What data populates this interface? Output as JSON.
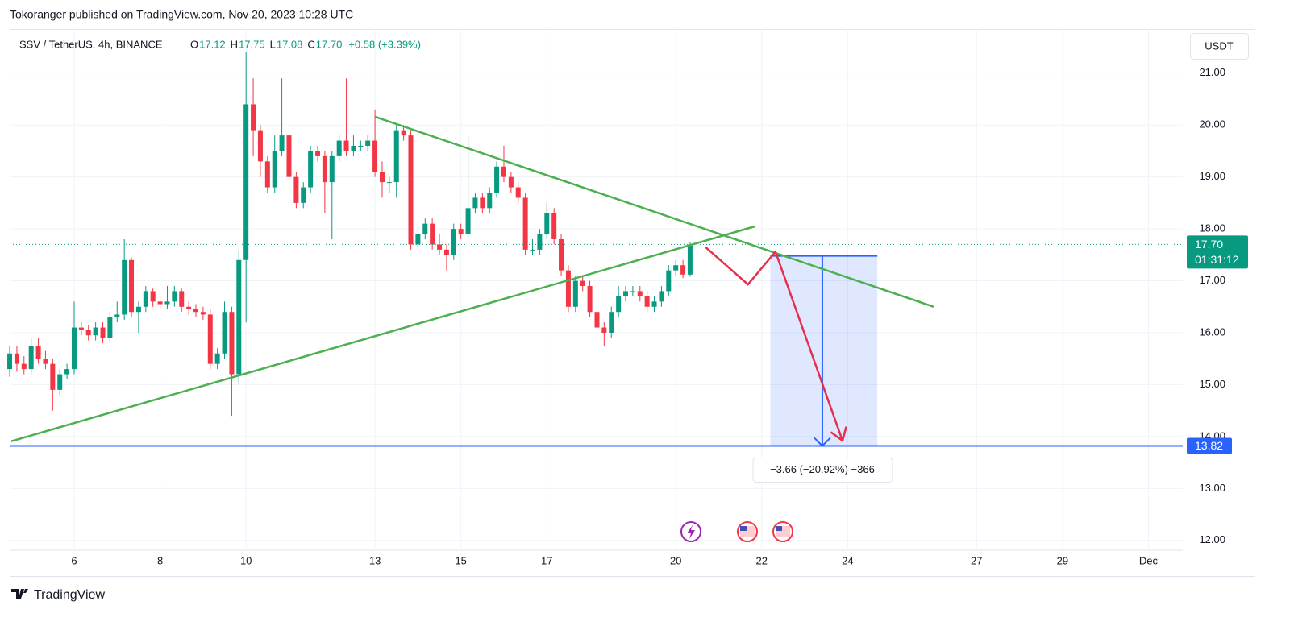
{
  "header": "Tokoranger published on TradingView.com, Nov 20, 2023 10:28 UTC",
  "footer": "TradingView",
  "currency_button": "USDT",
  "chart_data": {
    "type": "candlestick",
    "symbol": "SSV / TetherUS, 4h, BINANCE",
    "ohlc_legend": [
      {
        "label": "O",
        "value": "17.12"
      },
      {
        "label": "H",
        "value": "17.75"
      },
      {
        "label": "L",
        "value": "17.08"
      },
      {
        "label": "C",
        "value": "17.70"
      }
    ],
    "change": "+0.58 (+3.39%)",
    "up_color": "#089981",
    "down_color": "#f23645",
    "x": [
      4.5,
      4.667,
      4.833,
      5,
      5.167,
      5.333,
      5.5,
      5.667,
      5.833,
      6,
      6.167,
      6.333,
      6.5,
      6.667,
      6.833,
      7,
      7.167,
      7.333,
      7.5,
      7.667,
      7.833,
      8,
      8.167,
      8.333,
      8.5,
      8.667,
      8.833,
      9,
      9.167,
      9.333,
      9.5,
      9.667,
      9.833,
      10,
      10.167,
      10.333,
      10.5,
      10.667,
      10.833,
      11,
      11.167,
      11.333,
      11.5,
      11.667,
      11.833,
      12,
      12.167,
      12.333,
      12.5,
      12.667,
      12.833,
      13,
      13.167,
      13.333,
      13.5,
      13.667,
      13.833,
      14,
      14.167,
      14.333,
      14.5,
      14.667,
      14.833,
      15,
      15.167,
      15.333,
      15.5,
      15.667,
      15.833,
      16,
      16.167,
      16.333,
      16.5,
      16.667,
      16.833,
      17,
      17.167,
      17.333,
      17.5,
      17.667,
      17.833,
      18,
      18.167,
      18.333,
      18.5,
      18.667,
      18.833,
      19,
      19.167,
      19.333,
      19.5,
      19.667,
      19.833,
      20,
      20.167,
      20.333
    ],
    "open": [
      15.3,
      15.6,
      15.4,
      15.3,
      15.75,
      15.5,
      15.4,
      14.9,
      15.2,
      15.3,
      16.1,
      16.05,
      15.95,
      16.1,
      15.9,
      16.3,
      16.35,
      17.4,
      16.4,
      16.5,
      16.8,
      16.6,
      16.55,
      16.6,
      16.8,
      16.5,
      16.45,
      16.4,
      16.35,
      15.4,
      15.6,
      16.4,
      15.2,
      17.4,
      20.4,
      19.9,
      19.3,
      18.8,
      19.5,
      19.8,
      19.0,
      18.5,
      18.8,
      19.5,
      19.4,
      18.9,
      19.4,
      19.7,
      19.5,
      19.6,
      19.6,
      19.7,
      19.1,
      18.9,
      18.9,
      19.9,
      19.8,
      17.7,
      17.9,
      18.1,
      17.7,
      17.6,
      17.5,
      18.0,
      17.9,
      18.4,
      18.6,
      18.4,
      18.7,
      19.2,
      19.0,
      18.8,
      18.6,
      17.6,
      17.6,
      17.9,
      18.3,
      17.8,
      17.2,
      16.5,
      17.0,
      16.9,
      16.4,
      16.1,
      16.0,
      16.4,
      16.7,
      16.8,
      16.8,
      16.7,
      16.5,
      16.6,
      16.8,
      17.2,
      17.3,
      17.12
    ],
    "high": [
      15.75,
      15.75,
      15.55,
      15.9,
      15.9,
      15.65,
      15.5,
      15.3,
      15.4,
      16.6,
      16.2,
      16.15,
      16.2,
      16.2,
      16.4,
      16.6,
      17.8,
      17.45,
      16.6,
      16.9,
      16.85,
      16.7,
      16.9,
      16.9,
      16.85,
      16.6,
      16.55,
      16.5,
      16.45,
      15.7,
      16.6,
      16.5,
      17.6,
      21.4,
      20.9,
      20.0,
      19.4,
      19.8,
      20.9,
      19.9,
      19.1,
      18.9,
      19.6,
      19.6,
      19.5,
      19.5,
      19.8,
      20.9,
      19.8,
      19.7,
      19.8,
      20.3,
      19.3,
      19.0,
      20.0,
      20.0,
      19.9,
      18.0,
      18.2,
      18.2,
      17.9,
      17.7,
      18.1,
      18.1,
      19.8,
      18.7,
      18.7,
      18.8,
      19.3,
      19.6,
      19.1,
      18.9,
      18.7,
      17.8,
      18.0,
      18.5,
      18.4,
      17.9,
      17.3,
      17.1,
      17.1,
      17.0,
      16.5,
      16.2,
      16.5,
      16.9,
      16.9,
      16.9,
      16.9,
      16.8,
      16.7,
      16.9,
      17.3,
      17.4,
      17.4,
      17.75
    ],
    "low": [
      15.15,
      15.25,
      15.2,
      15.2,
      15.4,
      15.3,
      14.5,
      14.8,
      15.1,
      15.2,
      15.95,
      15.85,
      15.85,
      15.8,
      15.8,
      16.2,
      16.25,
      16.3,
      16.0,
      16.4,
      16.5,
      16.45,
      16.45,
      16.5,
      16.4,
      16.35,
      16.3,
      16.25,
      15.3,
      15.3,
      15.5,
      14.4,
      15.0,
      16.2,
      19.4,
      19.0,
      18.7,
      18.7,
      19.4,
      18.9,
      18.4,
      18.4,
      18.7,
      19.3,
      18.3,
      17.8,
      19.3,
      19.4,
      19.4,
      19.5,
      19.5,
      19.0,
      18.6,
      18.7,
      18.6,
      19.7,
      17.6,
      17.6,
      17.8,
      17.6,
      17.5,
      17.2,
      17.4,
      17.8,
      17.8,
      18.3,
      18.3,
      18.3,
      18.6,
      18.9,
      18.7,
      18.5,
      17.5,
      17.5,
      17.5,
      17.8,
      17.7,
      17.1,
      16.4,
      16.4,
      16.8,
      16.3,
      15.65,
      15.75,
      15.9,
      16.3,
      16.6,
      16.7,
      16.6,
      16.4,
      16.4,
      16.5,
      16.7,
      17.1,
      17.05,
      17.08
    ],
    "close": [
      15.6,
      15.4,
      15.3,
      15.75,
      15.5,
      15.4,
      14.9,
      15.2,
      15.3,
      16.1,
      16.05,
      15.95,
      16.1,
      15.9,
      16.3,
      16.35,
      17.4,
      16.4,
      16.5,
      16.8,
      16.6,
      16.55,
      16.6,
      16.8,
      16.5,
      16.45,
      16.4,
      16.35,
      15.4,
      15.6,
      16.4,
      15.2,
      17.4,
      20.4,
      19.9,
      19.3,
      18.8,
      19.5,
      19.8,
      19.0,
      18.5,
      18.8,
      19.5,
      19.4,
      18.9,
      19.4,
      19.7,
      19.5,
      19.6,
      19.6,
      19.7,
      19.1,
      18.9,
      18.9,
      19.9,
      19.8,
      17.7,
      17.9,
      18.1,
      17.7,
      17.6,
      17.5,
      18.0,
      17.9,
      18.4,
      18.6,
      18.4,
      18.7,
      19.2,
      19.0,
      18.8,
      18.6,
      17.6,
      17.6,
      17.9,
      18.3,
      17.8,
      17.2,
      16.5,
      17.0,
      16.9,
      16.4,
      16.1,
      16.0,
      16.4,
      16.7,
      16.8,
      16.8,
      16.7,
      16.5,
      16.6,
      16.8,
      17.2,
      17.3,
      17.12,
      17.7
    ],
    "xlim": [
      4.537,
      31.76
    ],
    "xticks": [
      6,
      8,
      10,
      13,
      15,
      17,
      20,
      22,
      24,
      27,
      29,
      {
        "value": 31,
        "label": "Dec"
      }
    ],
    "ylim": [
      11.81,
      21.85
    ],
    "yticks": [
      {
        "value": 12,
        "label": "12.00"
      },
      {
        "value": 13,
        "label": "13.00"
      },
      {
        "value": 14,
        "label": "14.00"
      },
      {
        "value": 15,
        "label": "15.00"
      },
      {
        "value": 16,
        "label": "16.00"
      },
      {
        "value": 17,
        "label": "17.00"
      },
      {
        "value": 18,
        "label": "18.00"
      },
      {
        "value": 19,
        "label": "19.00"
      },
      {
        "value": 20,
        "label": "20.00"
      },
      {
        "value": 21,
        "label": "21.00"
      }
    ],
    "grid": true,
    "last_price_label": "17.70",
    "countdown": "01:31:12",
    "target_line": {
      "value": 13.82,
      "label": "13.82",
      "color": "#2962ff"
    },
    "trendlines": [
      {
        "color": "#4caf50",
        "x": [
          4.537,
          21.85
        ],
        "y": [
          13.91,
          18.05
        ]
      },
      {
        "color": "#4caf50",
        "x": [
          13.0,
          26.0
        ],
        "y": [
          20.16,
          16.5
        ]
      }
    ],
    "projection": {
      "color": "#e5304d",
      "x": [
        20.69,
        21.68,
        22.32,
        23.88
      ],
      "y": [
        17.65,
        16.93,
        17.56,
        13.92
      ]
    },
    "measure": {
      "color": "#2962ff",
      "x": [
        22.2,
        24.69
      ],
      "arrow_x": 23.41,
      "from": 17.48,
      "to": 13.82,
      "label": "−3.66 (−20.92%) −366"
    }
  }
}
